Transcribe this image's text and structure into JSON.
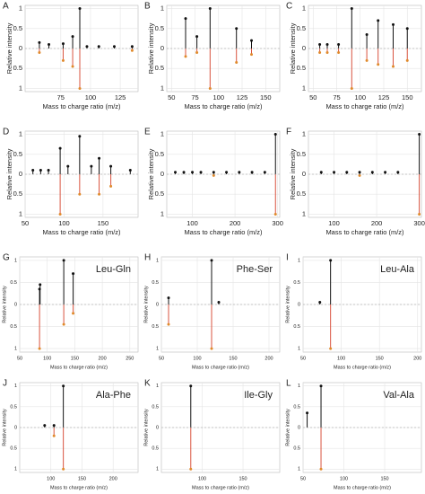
{
  "chart_data": [
    {
      "type": "stem",
      "label": "A",
      "xlabel": "Mass to charge ratio (m/z)",
      "ylabel": "Relative intensity",
      "xlim": [
        45,
        140
      ],
      "xticks": [
        75,
        100,
        125
      ],
      "ylim": [
        -1.08,
        1.08
      ],
      "yticks": [
        1,
        0.5,
        0,
        {
          "value": -0.5,
          "label": "0.5"
        },
        {
          "value": -1,
          "label": "1"
        }
      ],
      "series": [
        {
          "color": "#111111",
          "x": [
            57,
            65,
            77,
            85,
            91,
            97,
            107,
            120,
            135
          ],
          "values": [
            0.15,
            0.1,
            0.12,
            0.3,
            1.0,
            0.05,
            0.05,
            0.05,
            0.05
          ]
        },
        {
          "color": "#d9533f",
          "x": [
            57,
            77,
            85,
            91,
            135
          ],
          "values": [
            -0.1,
            -0.3,
            -0.45,
            -1.0,
            -0.05
          ]
        }
      ]
    },
    {
      "type": "stem",
      "label": "B",
      "xlabel": "Mass to charge ratio (m/z)",
      "ylabel": "Relative intensity",
      "xlim": [
        45,
        165
      ],
      "xticks": [
        50,
        75,
        100,
        125,
        150
      ],
      "ylim": [
        -1.08,
        1.08
      ],
      "yticks": [
        1,
        0.5,
        0,
        {
          "value": -0.5,
          "label": "0.5"
        },
        {
          "value": -1,
          "label": "1"
        }
      ],
      "series": [
        {
          "color": "#111111",
          "x": [
            65,
            77,
            91,
            119,
            135
          ],
          "values": [
            0.75,
            0.3,
            1.0,
            0.5,
            0.2
          ]
        },
        {
          "color": "#d9533f",
          "x": [
            65,
            77,
            91,
            119,
            135
          ],
          "values": [
            -0.2,
            -0.1,
            -1.0,
            -0.35,
            -0.15
          ]
        }
      ]
    },
    {
      "type": "stem",
      "label": "C",
      "xlabel": "Mass to charge ratio (m/z)",
      "ylabel": "Relative intensity",
      "xlim": [
        45,
        165
      ],
      "xticks": [
        50,
        75,
        100,
        125,
        150
      ],
      "ylim": [
        -1.08,
        1.08
      ],
      "yticks": [
        1,
        0.5,
        0,
        {
          "value": -0.5,
          "label": "0.5"
        },
        {
          "value": -1,
          "label": "1"
        }
      ],
      "series": [
        {
          "color": "#111111",
          "x": [
            57,
            65,
            77,
            91,
            107,
            119,
            135,
            150
          ],
          "values": [
            0.1,
            0.1,
            0.1,
            1.0,
            0.35,
            0.7,
            0.6,
            0.5
          ]
        },
        {
          "color": "#d9533f",
          "x": [
            57,
            65,
            77,
            91,
            107,
            119,
            135,
            150
          ],
          "values": [
            -0.1,
            -0.1,
            -0.1,
            -1.0,
            -0.3,
            -0.4,
            -0.45,
            -0.3
          ]
        }
      ]
    },
    {
      "type": "stem",
      "label": "D",
      "xlabel": "Mass to charge ratio (m/z)",
      "ylabel": "Relative intensity",
      "xlim": [
        50,
        195
      ],
      "xticks": [
        50,
        100,
        150
      ],
      "ylim": [
        -1.08,
        1.08
      ],
      "yticks": [
        1,
        0.5,
        0,
        {
          "value": -0.5,
          "label": "0.5"
        },
        {
          "value": -1,
          "label": "1"
        }
      ],
      "series": [
        {
          "color": "#111111",
          "x": [
            60,
            70,
            80,
            95,
            105,
            120,
            135,
            145,
            160,
            185
          ],
          "values": [
            0.1,
            0.1,
            0.1,
            0.65,
            0.2,
            0.95,
            0.2,
            0.4,
            0.2,
            0.1
          ]
        },
        {
          "color": "#d9533f",
          "x": [
            95,
            120,
            145,
            160
          ],
          "values": [
            -1.0,
            -0.5,
            -0.5,
            -0.3
          ]
        }
      ]
    },
    {
      "type": "stem",
      "label": "E",
      "xlabel": "Mass to charge ratio (m/z)",
      "ylabel": "Relative intensity",
      "xlim": [
        40,
        305
      ],
      "xticks": [
        100,
        200,
        300
      ],
      "ylim": [
        -1.08,
        1.08
      ],
      "yticks": [
        1,
        0.5,
        0,
        {
          "value": -0.5,
          "label": "0.5"
        },
        {
          "value": -1,
          "label": "1"
        }
      ],
      "series": [
        {
          "color": "#111111",
          "x": [
            60,
            80,
            100,
            120,
            150,
            180,
            210,
            240,
            270,
            295
          ],
          "values": [
            0.05,
            0.05,
            0.05,
            0.05,
            0.05,
            0.05,
            0.05,
            0.05,
            0.05,
            1.0
          ]
        },
        {
          "color": "#d9533f",
          "x": [
            150,
            295
          ],
          "values": [
            -0.03,
            -1.0
          ]
        }
      ]
    },
    {
      "type": "stem",
      "label": "F",
      "xlabel": "Mass to charge ratio (m/z)",
      "ylabel": "Relative intensity",
      "xlim": [
        40,
        305
      ],
      "xticks": [
        100,
        200,
        300
      ],
      "ylim": [
        -1.08,
        1.08
      ],
      "yticks": [
        1,
        0.5,
        0,
        {
          "value": -0.5,
          "label": "0.5"
        },
        {
          "value": -1,
          "label": "1"
        }
      ],
      "series": [
        {
          "color": "#111111",
          "x": [
            70,
            100,
            130,
            160,
            190,
            220,
            250,
            300
          ],
          "values": [
            0.05,
            0.05,
            0.05,
            0.05,
            0.05,
            0.05,
            0.05,
            1.0
          ]
        },
        {
          "color": "#d9533f",
          "x": [
            160,
            300
          ],
          "values": [
            -0.03,
            -1.0
          ]
        }
      ]
    },
    {
      "type": "stem",
      "label": "G",
      "title": "Leu-Gln",
      "xlabel": "Mass to charge ratio (m/z)",
      "ylabel": "Relative intensity",
      "xlim": [
        50,
        265
      ],
      "xticks": [
        50,
        100,
        150,
        200,
        250
      ],
      "ylim": [
        -1.08,
        1.08
      ],
      "yticks": [
        1,
        0.5,
        0,
        {
          "value": -0.5,
          "label": "0.5"
        },
        {
          "value": -1,
          "label": "1"
        }
      ],
      "series": [
        {
          "color": "#111111",
          "x": [
            86,
            87,
            130,
            147
          ],
          "values": [
            0.35,
            0.45,
            1.0,
            0.7
          ]
        },
        {
          "color": "#d9533f",
          "x": [
            86,
            130,
            147
          ],
          "values": [
            -1.0,
            -0.45,
            -0.2
          ]
        }
      ]
    },
    {
      "type": "stem",
      "label": "H",
      "title": "Phe-Ser",
      "xlabel": "Mass to charge ratio (m/z)",
      "ylabel": "Relative intensity",
      "xlim": [
        50,
        215
      ],
      "xticks": [
        50,
        100,
        150,
        200
      ],
      "ylim": [
        -1.08,
        1.08
      ],
      "yticks": [
        1,
        0.5,
        0,
        {
          "value": -0.5,
          "label": "0.5"
        },
        {
          "value": -1,
          "label": "1"
        }
      ],
      "series": [
        {
          "color": "#111111",
          "x": [
            60,
            120,
            130
          ],
          "values": [
            0.15,
            1.0,
            0.05
          ]
        },
        {
          "color": "#d9533f",
          "x": [
            60,
            120
          ],
          "values": [
            -0.45,
            -1.0
          ]
        }
      ]
    },
    {
      "type": "stem",
      "label": "I",
      "title": "Leu-Ala",
      "xlabel": "Mass to charge ratio (m/z)",
      "ylabel": "Relative intensity",
      "xlim": [
        50,
        205
      ],
      "xticks": [
        50,
        100,
        150,
        200
      ],
      "ylim": [
        -1.08,
        1.08
      ],
      "yticks": [
        1,
        0.5,
        0,
        {
          "value": -0.5,
          "label": "0.5"
        },
        {
          "value": -1,
          "label": "1"
        }
      ],
      "series": [
        {
          "color": "#111111",
          "x": [
            72,
            86
          ],
          "values": [
            0.05,
            1.0
          ]
        },
        {
          "color": "#d9533f",
          "x": [
            86
          ],
          "values": [
            -1.0
          ]
        }
      ]
    },
    {
      "type": "stem",
      "label": "J",
      "title": "Ala-Phe",
      "xlabel": "Mass to charge ratio (m/z)",
      "ylabel": "Relative intensity",
      "xlim": [
        50,
        240
      ],
      "xticks": [
        100,
        150,
        200
      ],
      "ylim": [
        -1.08,
        1.08
      ],
      "yticks": [
        1,
        0.5,
        0,
        {
          "value": -0.5,
          "label": "0.5"
        },
        {
          "value": -1,
          "label": "1"
        }
      ],
      "series": [
        {
          "color": "#111111",
          "x": [
            90,
            105,
            120
          ],
          "values": [
            0.05,
            0.05,
            1.0
          ]
        },
        {
          "color": "#d9533f",
          "x": [
            105,
            120
          ],
          "values": [
            -0.2,
            -1.0
          ]
        }
      ]
    },
    {
      "type": "stem",
      "label": "K",
      "title": "Ile-Gly",
      "xlabel": "Mass to charge ratio (m/z)",
      "ylabel": "Relative intensity",
      "xlim": [
        50,
        195
      ],
      "xticks": [
        100,
        150
      ],
      "ylim": [
        -1.08,
        1.08
      ],
      "yticks": [
        1,
        0.5,
        0,
        {
          "value": -0.5,
          "label": "0.5"
        },
        {
          "value": -1,
          "label": "1"
        }
      ],
      "series": [
        {
          "color": "#111111",
          "x": [
            86
          ],
          "values": [
            1.0
          ]
        },
        {
          "color": "#d9533f",
          "x": [
            86
          ],
          "values": [
            -1.0
          ]
        }
      ]
    },
    {
      "type": "stem",
      "label": "L",
      "title": "Val-Ala",
      "xlabel": "Mass to charge ratio (m/z)",
      "ylabel": "Relative intensity",
      "xlim": [
        50,
        195
      ],
      "xticks": [
        50,
        100,
        150
      ],
      "ylim": [
        -1.08,
        1.08
      ],
      "yticks": [
        1,
        0.5,
        0,
        {
          "value": -0.5,
          "label": "0.5"
        },
        {
          "value": -1,
          "label": "1"
        }
      ],
      "series": [
        {
          "color": "#111111",
          "x": [
            55,
            72
          ],
          "values": [
            0.35,
            1.0
          ]
        },
        {
          "color": "#d9533f",
          "x": [
            72
          ],
          "values": [
            -1.0
          ]
        }
      ]
    }
  ]
}
